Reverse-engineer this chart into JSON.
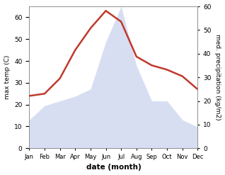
{
  "months": [
    "Jan",
    "Feb",
    "Mar",
    "Apr",
    "May",
    "Jun",
    "Jul",
    "Aug",
    "Sep",
    "Oct",
    "Nov",
    "Dec"
  ],
  "temperature": [
    24,
    25,
    32,
    45,
    55,
    63,
    58,
    42,
    38,
    36,
    33,
    27
  ],
  "precipitation": [
    12,
    18,
    20,
    22,
    25,
    45,
    60,
    35,
    20,
    20,
    12,
    9
  ],
  "temp_color": "#c0392b",
  "precip_fill_color": "#b8c4e8",
  "temp_ylim": [
    0,
    65
  ],
  "precip_ylim": [
    0,
    60
  ],
  "temp_ylabel": "max temp (C)",
  "precip_ylabel": "med. precipitation (kg/m2)",
  "xlabel": "date (month)",
  "xlabel_fontweight": "bold",
  "bg_color": "#ffffff",
  "temp_linewidth": 1.8,
  "precip_alpha": 0.55
}
